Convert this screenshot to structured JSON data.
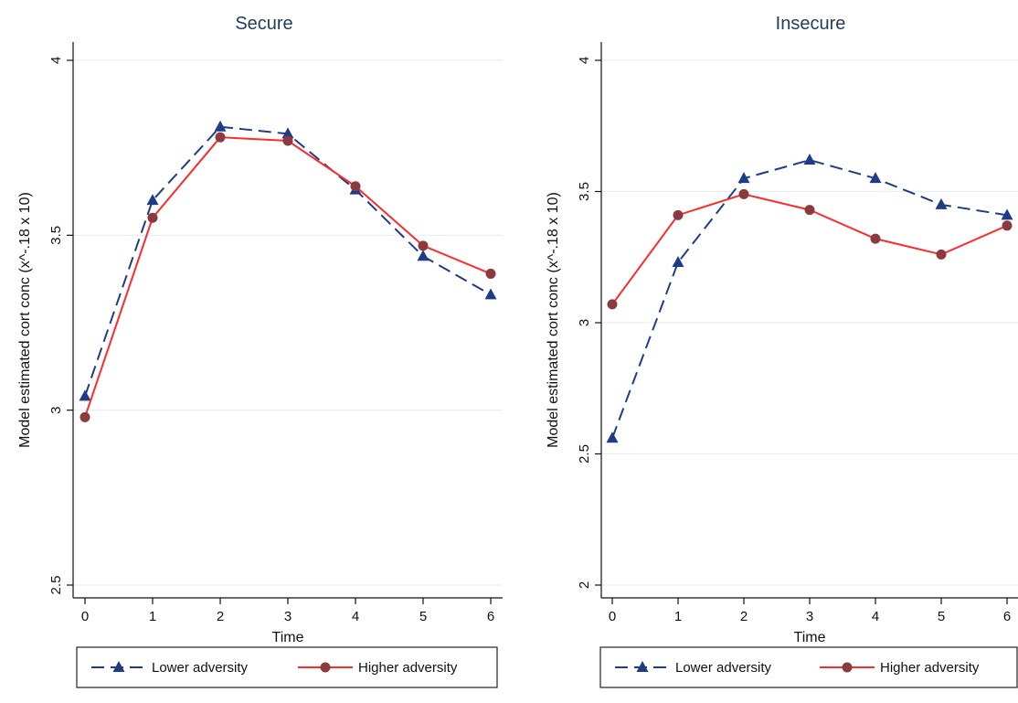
{
  "chart_data": [
    {
      "type": "line",
      "title": "Secure",
      "xlabel": "Time",
      "ylabel": "Model estimated cort conc (x^-.18 x 10)",
      "x": [
        0,
        1,
        2,
        3,
        4,
        5,
        6
      ],
      "xlim": [
        0,
        6
      ],
      "ylim": [
        2.5,
        4
      ],
      "yticks": [
        2.5,
        3,
        3.5,
        4
      ],
      "grid": true,
      "legend_position": "bottom",
      "series": [
        {
          "name": "Lower adversity",
          "values": [
            3.04,
            3.6,
            3.81,
            3.79,
            3.63,
            3.44,
            3.33
          ],
          "color": "#1f3c88",
          "marker": "triangle",
          "dash": true
        },
        {
          "name": "Higher adversity",
          "values": [
            2.98,
            3.55,
            3.78,
            3.77,
            3.64,
            3.47,
            3.39
          ],
          "color": "#ff2a2a",
          "marker": "circle",
          "dash": false
        }
      ]
    },
    {
      "type": "line",
      "title": "Insecure",
      "xlabel": "Time",
      "ylabel": "Model estimated cort conc (x^-.18 x 10)",
      "x": [
        0,
        1,
        2,
        3,
        4,
        5,
        6
      ],
      "xlim": [
        0,
        6
      ],
      "ylim": [
        2,
        4
      ],
      "yticks": [
        2,
        2.5,
        3,
        3.5,
        4
      ],
      "grid": true,
      "legend_position": "bottom",
      "series": [
        {
          "name": "Lower adversity",
          "values": [
            2.56,
            3.23,
            3.55,
            3.62,
            3.55,
            3.45,
            3.41
          ],
          "color": "#1f3c88",
          "marker": "triangle",
          "dash": true
        },
        {
          "name": "Higher adversity",
          "values": [
            3.07,
            3.41,
            3.49,
            3.43,
            3.32,
            3.26,
            3.37
          ],
          "color": "#ff2a2a",
          "marker": "circle",
          "dash": false
        }
      ]
    }
  ]
}
